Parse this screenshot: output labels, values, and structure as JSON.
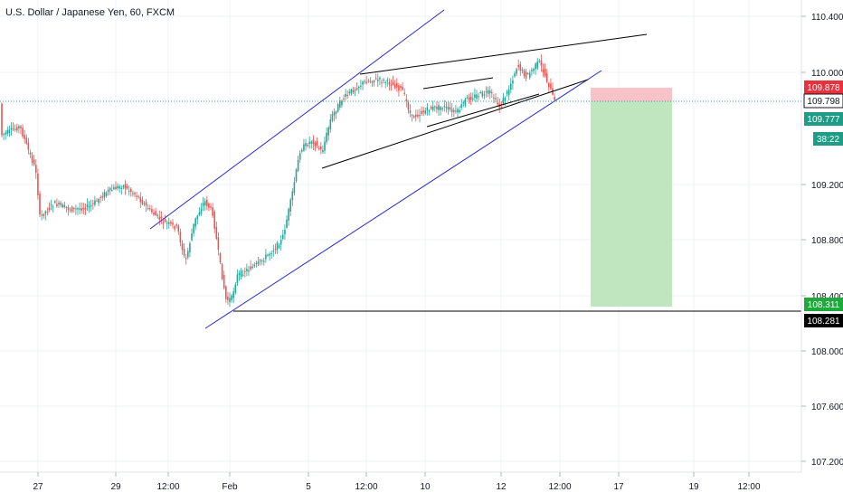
{
  "header": {
    "symbol_title": "U.S. Dollar / Japanese Yen, 60, FXCM"
  },
  "colors": {
    "bull": "#26a69a",
    "bear": "#ef5350",
    "grid": "#eef0f3",
    "channel": "#2929d6",
    "trendline": "#000000",
    "last_price_line": "#26a69a",
    "target_zone": "#bfe6bf",
    "stop_zone": "#f8c3c8",
    "label_red": "#e8313c",
    "label_green": "#1f9c86",
    "label_target": "#1eaa3a",
    "label_black": "#000000"
  },
  "chart_data": {
    "type": "candlestick",
    "title": "U.S. Dollar / Japanese Yen, 60, FXCM",
    "y_axis": {
      "ticks": [
        "110.400",
        "110.000",
        "109.200",
        "108.800",
        "108.400",
        "108.000",
        "107.600",
        "107.200"
      ],
      "range": [
        107.15,
        110.55
      ]
    },
    "x_axis": {
      "ticks": [
        "27",
        "29",
        "12:00",
        "Feb",
        "5",
        "12:00",
        "10",
        "12",
        "12:00",
        "17",
        "19",
        "12:00"
      ]
    },
    "price_labels": [
      {
        "name": "stop",
        "value": "109.878"
      },
      {
        "name": "entry",
        "value": "109.798"
      },
      {
        "name": "last",
        "value": "109.777"
      },
      {
        "name": "countdown",
        "value": "38:22"
      },
      {
        "name": "target",
        "value": "108.311"
      },
      {
        "name": "support",
        "value": "108.281"
      }
    ],
    "position": {
      "direction": "short",
      "entry": 109.798,
      "stop": 109.878,
      "target": 108.311
    },
    "support_level": 108.281,
    "grid": true
  }
}
